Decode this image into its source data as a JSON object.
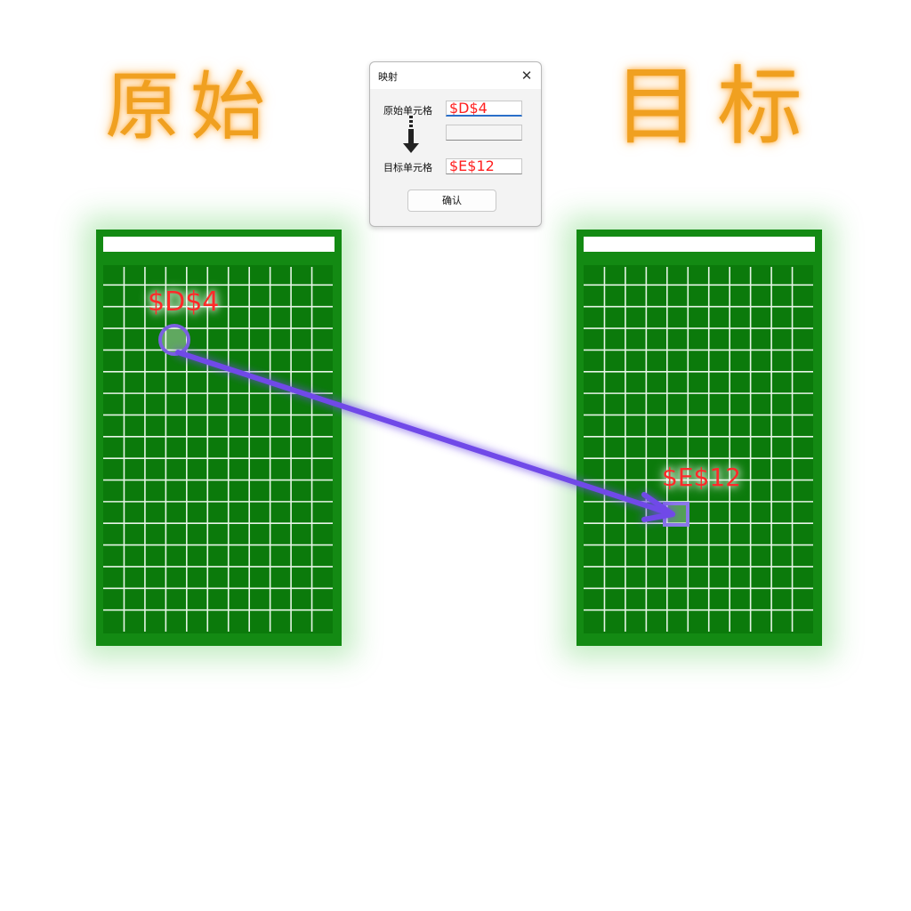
{
  "headings": {
    "left": "原始",
    "right": "目标"
  },
  "dialog": {
    "title": "映射",
    "close_glyph": "✕",
    "source_label": "原始单元格",
    "source_value": "$D$4",
    "middle_value": "",
    "target_label": "目标单元格",
    "target_value": "$E$12",
    "confirm_label": "确认"
  },
  "annotations": {
    "source_cell": "$D$4",
    "target_cell": "$E$12"
  },
  "colors": {
    "panel_green": "#138a13",
    "grid_green": "#0b7a0b",
    "heading_orange": "#f0a020",
    "annotation_red": "#ff2a2a",
    "arrow_purple": "#7048e8"
  },
  "icons": {
    "down_arrow": "down-arrow-icon",
    "close": "close-icon"
  }
}
